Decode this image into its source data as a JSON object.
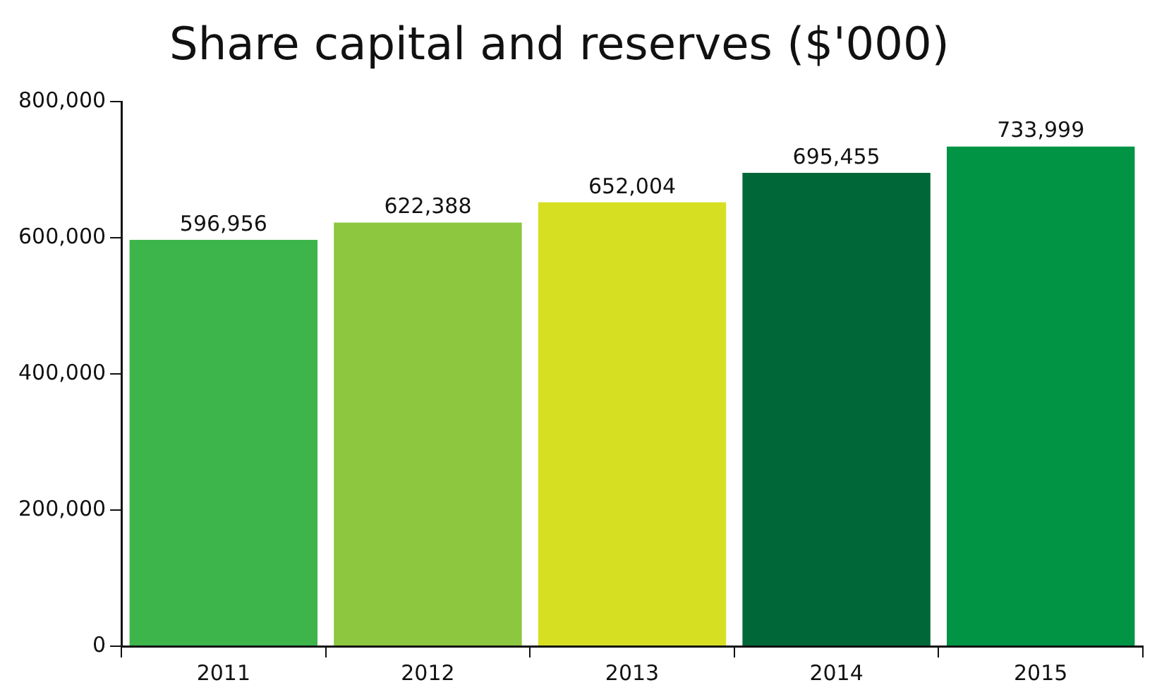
{
  "chart_data": {
    "type": "bar",
    "title": "Share capital and reserves ($'000)",
    "categories": [
      "2011",
      "2012",
      "2013",
      "2014",
      "2015"
    ],
    "values": [
      596956,
      622388,
      652004,
      695455,
      733999
    ],
    "value_labels": [
      "596,956",
      "622,388",
      "652,004",
      "695,455",
      "733,999"
    ],
    "colors": [
      "#3db54a",
      "#8dc63f",
      "#d7df23",
      "#006838",
      "#009444"
    ],
    "ylim": [
      0,
      800000
    ],
    "yticks": [
      0,
      {
        "value": 200000,
        "label": "200,000"
      },
      {
        "value": 400000,
        "label": "400,000"
      },
      {
        "value": 600000,
        "label": "600,000"
      },
      {
        "value": 800000,
        "label": "800,000"
      }
    ],
    "grid": false,
    "legend": false
  }
}
